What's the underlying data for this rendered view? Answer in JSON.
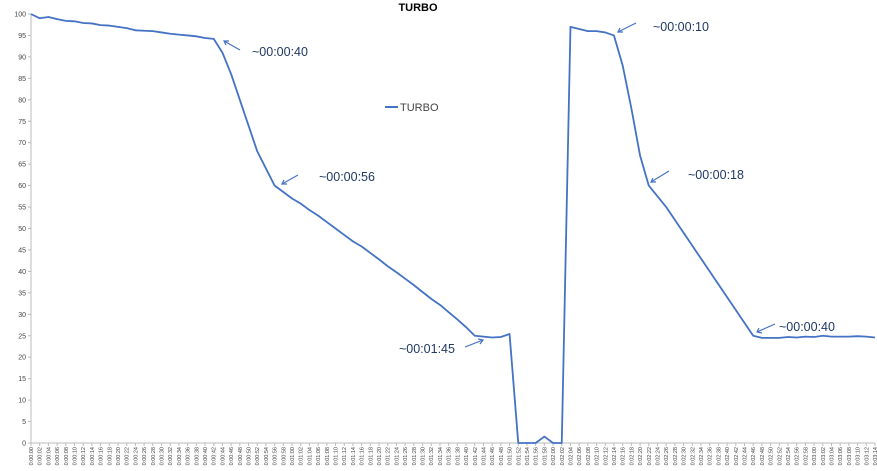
{
  "chart_data": {
    "type": "line",
    "title": "TURBO",
    "categories": [
      "0:00:00",
      "0:00:02",
      "0:00:04",
      "0:00:06",
      "0:00:08",
      "0:00:10",
      "0:00:12",
      "0:00:14",
      "0:00:16",
      "0:00:18",
      "0:00:20",
      "0:00:22",
      "0:00:24",
      "0:00:26",
      "0:00:28",
      "0:00:30",
      "0:00:32",
      "0:00:34",
      "0:00:36",
      "0:00:38",
      "0:00:40",
      "0:00:42",
      "0:00:44",
      "0:00:46",
      "0:00:48",
      "0:00:50",
      "0:00:52",
      "0:00:54",
      "0:00:56",
      "0:00:58",
      "0:01:00",
      "0:01:02",
      "0:01:04",
      "0:01:06",
      "0:01:08",
      "0:01:10",
      "0:01:12",
      "0:01:14",
      "0:01:16",
      "0:01:18",
      "0:01:20",
      "0:01:22",
      "0:01:24",
      "0:01:26",
      "0:01:28",
      "0:01:30",
      "0:01:32",
      "0:01:34",
      "0:01:36",
      "0:01:38",
      "0:01:40",
      "0:01:42",
      "0:01:44",
      "0:01:46",
      "0:01:48",
      "0:01:50",
      "0:01:52",
      "0:01:54",
      "0:01:56",
      "0:01:58",
      "0:02:00",
      "0:02:02",
      "0:02:04",
      "0:02:06",
      "0:02:08",
      "0:02:10",
      "0:02:12",
      "0:02:14",
      "0:02:16",
      "0:02:18",
      "0:02:20",
      "0:02:22",
      "0:02:24",
      "0:02:26",
      "0:02:28",
      "0:02:30",
      "0:02:32",
      "0:02:34",
      "0:02:36",
      "0:02:38",
      "0:02:40",
      "0:02:42",
      "0:02:44",
      "0:02:46",
      "0:02:48",
      "0:02:50",
      "0:02:52",
      "0:02:54",
      "0:02:56",
      "0:02:58",
      "0:03:00",
      "0:03:02",
      "0:03:04",
      "0:03:06",
      "0:03:08",
      "0:03:10",
      "0:03:12",
      "0:03:14"
    ],
    "series": [
      {
        "name": "TURBO",
        "color": "#4472c4",
        "values": [
          100,
          99,
          99.3,
          98.8,
          98.4,
          98.3,
          97.9,
          97.8,
          97.4,
          97.3,
          97,
          96.7,
          96.2,
          96.1,
          96,
          95.7,
          95.4,
          95.2,
          95,
          94.8,
          94.4,
          94.2,
          91,
          86,
          80,
          74,
          68,
          64,
          60,
          58.5,
          57,
          55.8,
          54.3,
          53,
          51.5,
          50,
          48.5,
          47,
          45.8,
          44.3,
          42.8,
          41.2,
          39.8,
          38.3,
          36.8,
          35.2,
          33.6,
          32.2,
          30.5,
          28.8,
          27,
          25,
          24.8,
          24.6,
          24.7,
          25.4,
          0,
          0,
          0,
          1.5,
          0,
          0,
          97,
          96.5,
          96,
          96,
          95.7,
          95,
          88,
          78,
          67,
          60,
          57.5,
          55,
          52,
          49,
          46,
          43,
          40,
          37,
          34,
          31,
          28,
          25,
          24.5,
          24.5,
          24.5,
          24.7,
          24.6,
          24.8,
          24.7,
          25,
          24.8,
          24.8,
          24.8,
          24.9,
          24.8,
          24.6
        ]
      }
    ],
    "ylim": [
      0,
      100
    ],
    "yticks": [
      0,
      5,
      10,
      15,
      20,
      25,
      30,
      35,
      40,
      45,
      50,
      55,
      60,
      65,
      70,
      75,
      80,
      85,
      90,
      95,
      100
    ],
    "annotations": [
      "~00:00:40",
      "~00:00:56",
      "~00:01:45",
      "~00:00:10",
      "~00:00:18",
      "~00:00:40"
    ],
    "legend": "inside-top-center"
  }
}
